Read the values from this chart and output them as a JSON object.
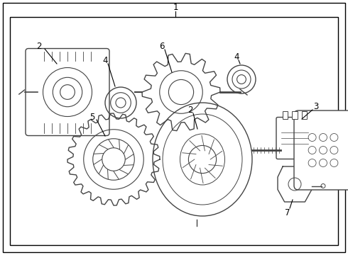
{
  "background_color": "#ffffff",
  "border_color": "#000000",
  "line_color": "#444444",
  "fig_width": 4.9,
  "fig_height": 3.6,
  "dpi": 100,
  "label_fontsize": 8.5
}
